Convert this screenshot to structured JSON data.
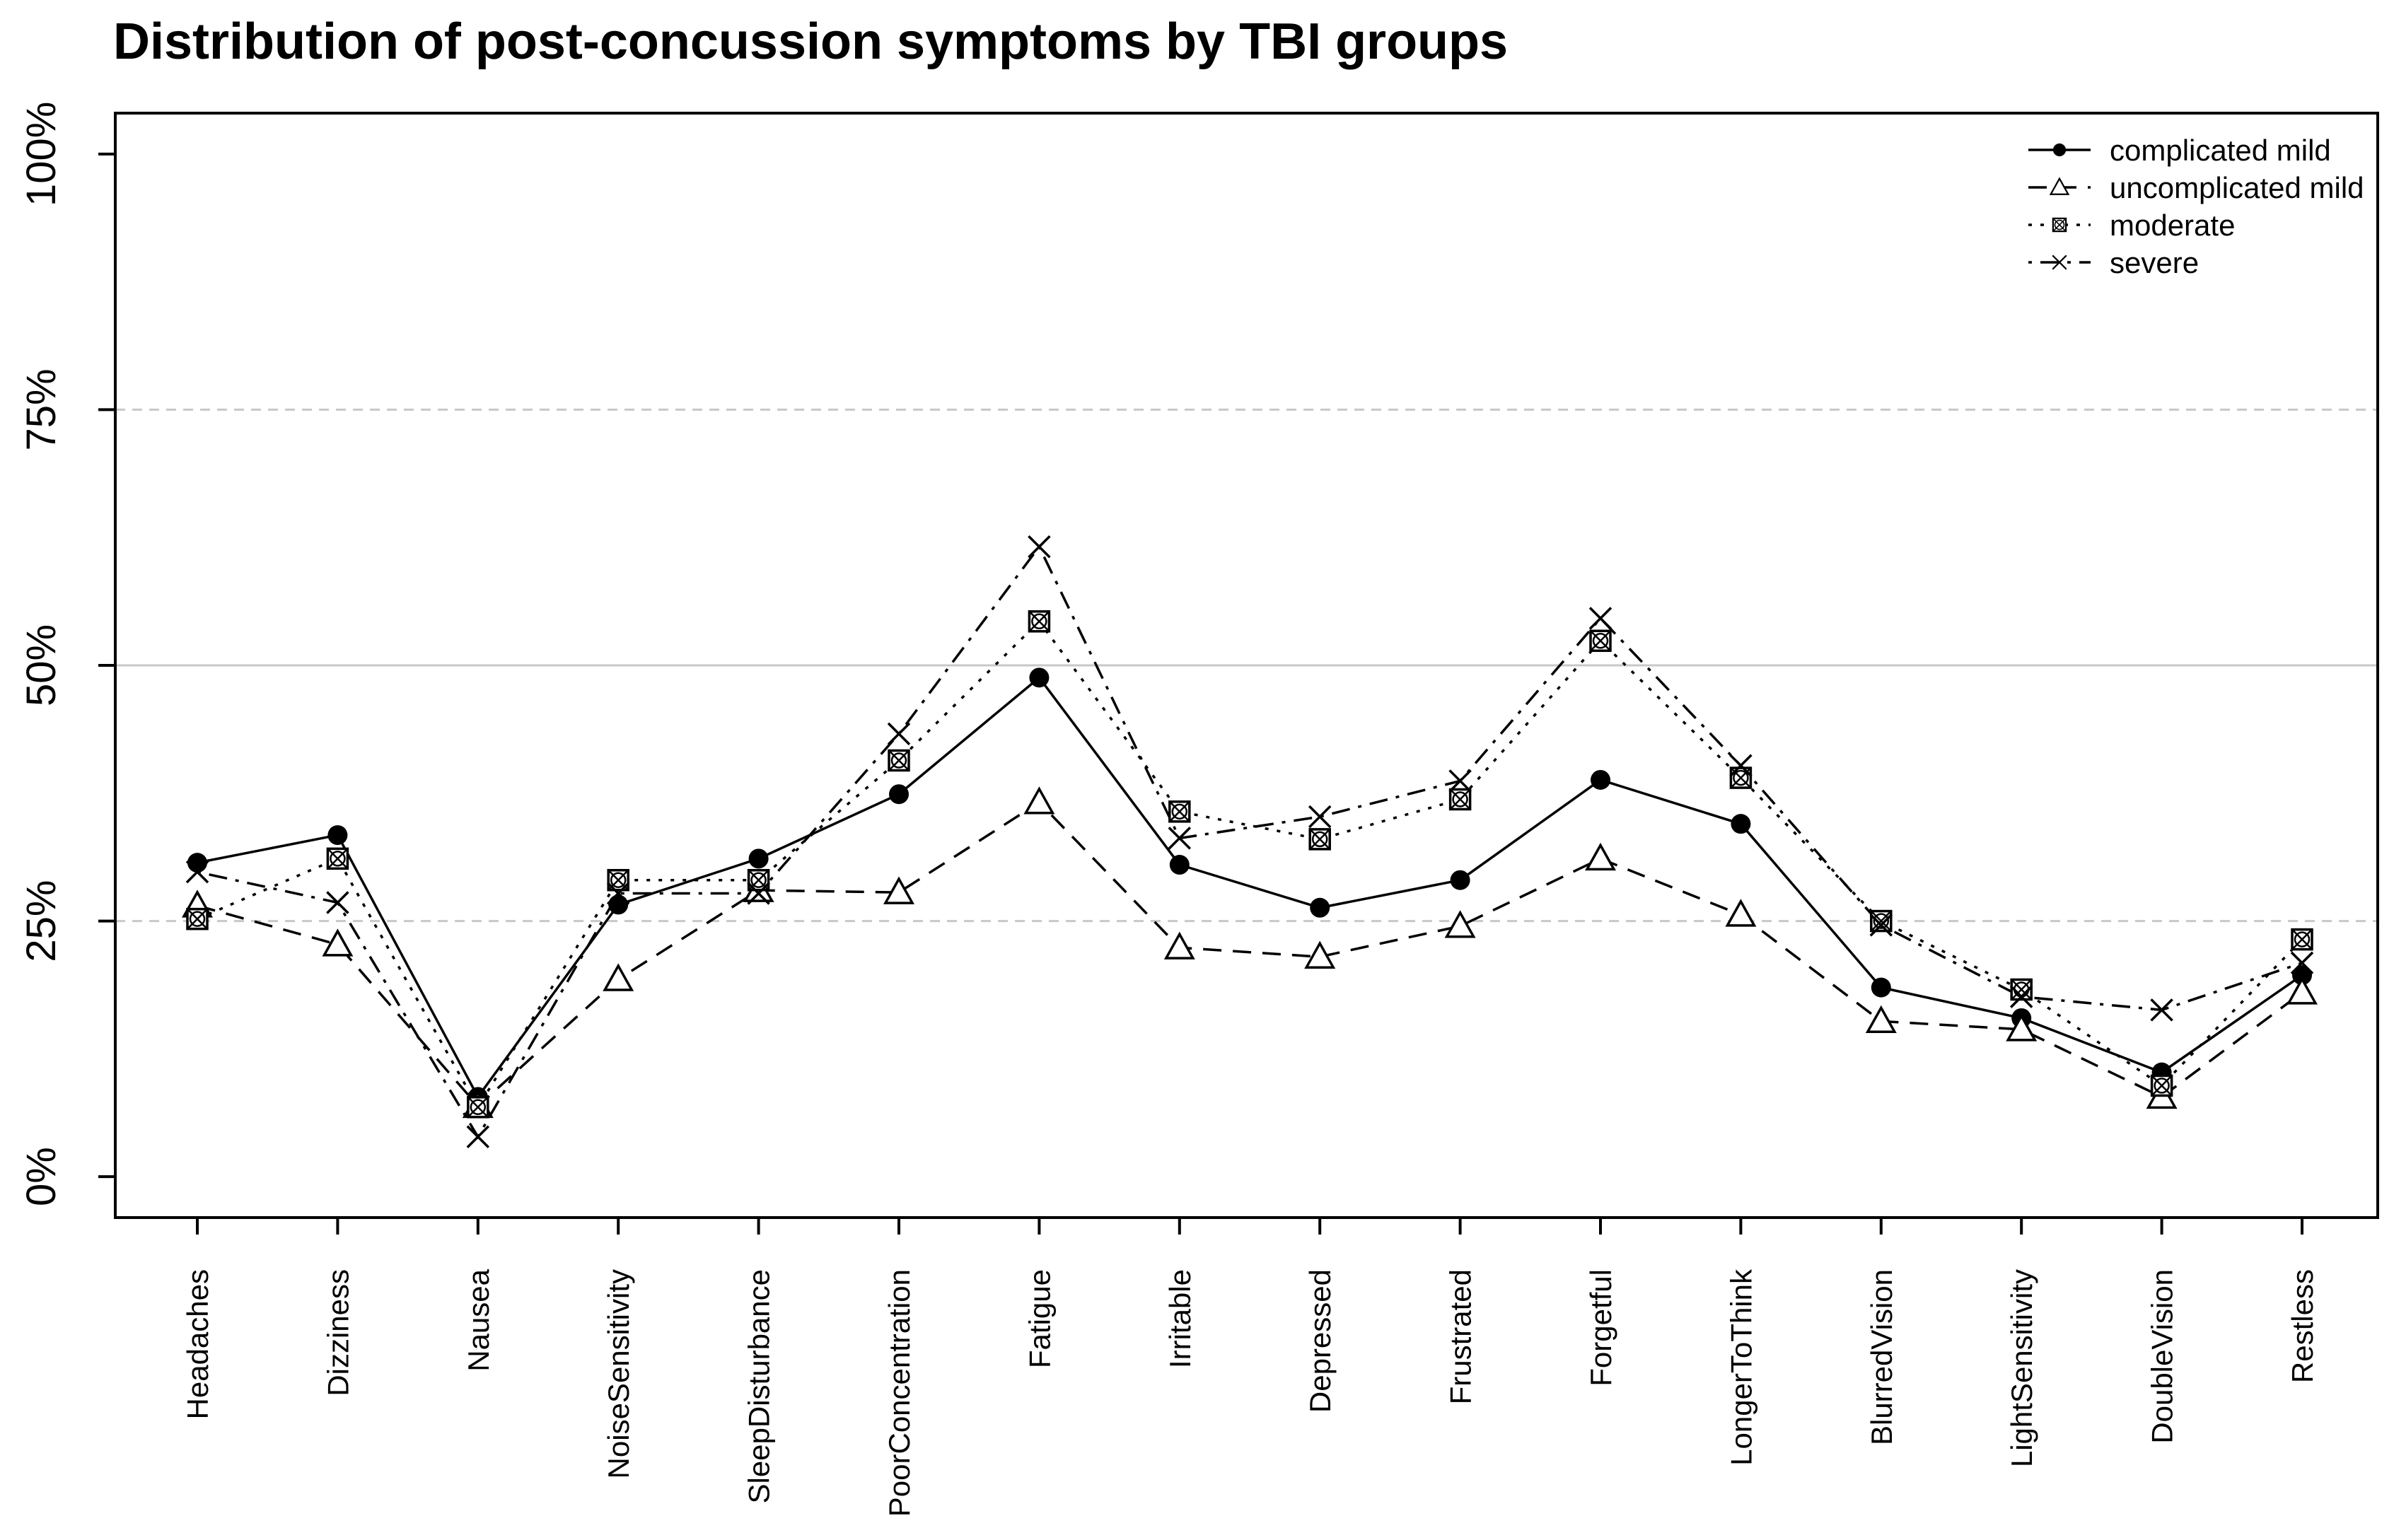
{
  "chart_data": {
    "type": "line",
    "title": "Distribution of post-concussion symptoms by TBI groups",
    "xlabel": "",
    "ylabel": "",
    "ylim": [
      -0.04,
      1.04
    ],
    "yticks": [
      0,
      0.25,
      0.5,
      0.75,
      1.0
    ],
    "ytick_labels": [
      "0%",
      "25%",
      "50%",
      "75%",
      "100%"
    ],
    "categories": [
      "Headaches",
      "Dizziness",
      "Nausea",
      "NoiseSensitivity",
      "SleepDisturbance",
      "PoorConcentration",
      "Fatigue",
      "Irritable",
      "Depressed",
      "Frustrated",
      "Forgetful",
      "LongerToThink",
      "BlurredVision",
      "LightSensitivity",
      "DoubleVision",
      "Restless"
    ],
    "legend_position": "top-right",
    "series": [
      {
        "name": "complicated mild",
        "marker": "filled-circle",
        "linestyle": "solid",
        "values": [
          0.307,
          0.334,
          0.078,
          0.266,
          0.311,
          0.374,
          0.488,
          0.305,
          0.263,
          0.29,
          0.388,
          0.345,
          0.185,
          0.155,
          0.102,
          0.197
        ]
      },
      {
        "name": "uncomplicated mild",
        "marker": "open-triangle",
        "linestyle": "dashed",
        "values": [
          0.265,
          0.227,
          0.069,
          0.193,
          0.28,
          0.278,
          0.366,
          0.224,
          0.215,
          0.245,
          0.311,
          0.256,
          0.152,
          0.144,
          0.078,
          0.18
        ]
      },
      {
        "name": "moderate",
        "marker": "boxed-x",
        "linestyle": "dotted",
        "values": [
          0.252,
          0.311,
          0.068,
          0.29,
          0.29,
          0.407,
          0.543,
          0.357,
          0.33,
          0.369,
          0.524,
          0.39,
          0.25,
          0.183,
          0.089,
          0.232
        ]
      },
      {
        "name": "severe",
        "marker": "x",
        "linestyle": "dashdot",
        "values": [
          0.298,
          0.268,
          0.039,
          0.277,
          0.277,
          0.433,
          0.616,
          0.331,
          0.352,
          0.387,
          0.546,
          0.402,
          0.246,
          0.176,
          0.163,
          0.209
        ]
      }
    ],
    "gridlines": [
      {
        "value": 0.25,
        "style": "dashed"
      },
      {
        "value": 0.5,
        "style": "solid"
      },
      {
        "value": 0.75,
        "style": "dashed"
      }
    ]
  }
}
